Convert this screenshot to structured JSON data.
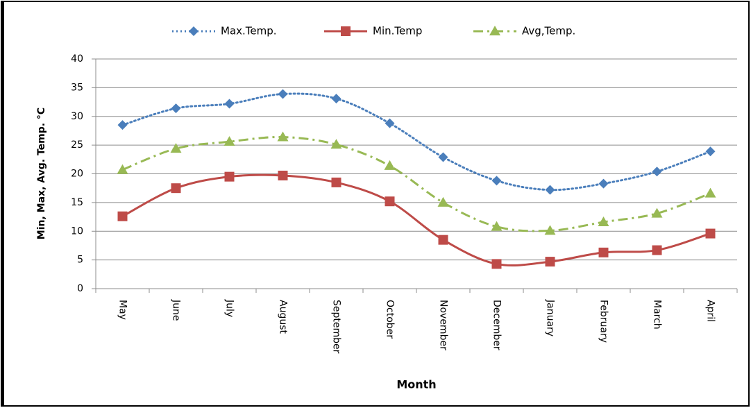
{
  "chart_data": {
    "type": "line",
    "y_label": "Min, Max, Avg. Temp. °C",
    "x_label": "Month",
    "categories": [
      "May",
      "June",
      "July",
      "August",
      "September",
      "October",
      "November",
      "December",
      "January",
      "February",
      "March",
      "April"
    ],
    "series": [
      {
        "name": "Max.Temp.",
        "color": "#4a7ebb",
        "line_style": "dotted",
        "marker": "diamond",
        "values": [
          28.5,
          31.4,
          32.2,
          33.9,
          33.1,
          28.8,
          22.9,
          18.8,
          17.2,
          18.3,
          20.4,
          23.9
        ]
      },
      {
        "name": "Min.Temp",
        "color": "#be4b48",
        "line_style": "solid",
        "marker": "square",
        "values": [
          12.6,
          17.5,
          19.5,
          19.7,
          18.5,
          15.2,
          8.5,
          4.3,
          4.7,
          6.3,
          6.7,
          9.6
        ]
      },
      {
        "name": "Avg,Temp.",
        "color": "#98b954",
        "line_style": "dashdot",
        "marker": "triangle",
        "values": [
          20.7,
          24.4,
          25.6,
          26.4,
          25.1,
          21.4,
          15.0,
          10.8,
          10.1,
          11.6,
          13.1,
          16.6
        ]
      }
    ],
    "ylim": [
      0,
      40
    ],
    "yticks": [
      0,
      5,
      10,
      15,
      20,
      25,
      30,
      35,
      40
    ],
    "grid": true,
    "smooth": true,
    "legend": "top"
  }
}
